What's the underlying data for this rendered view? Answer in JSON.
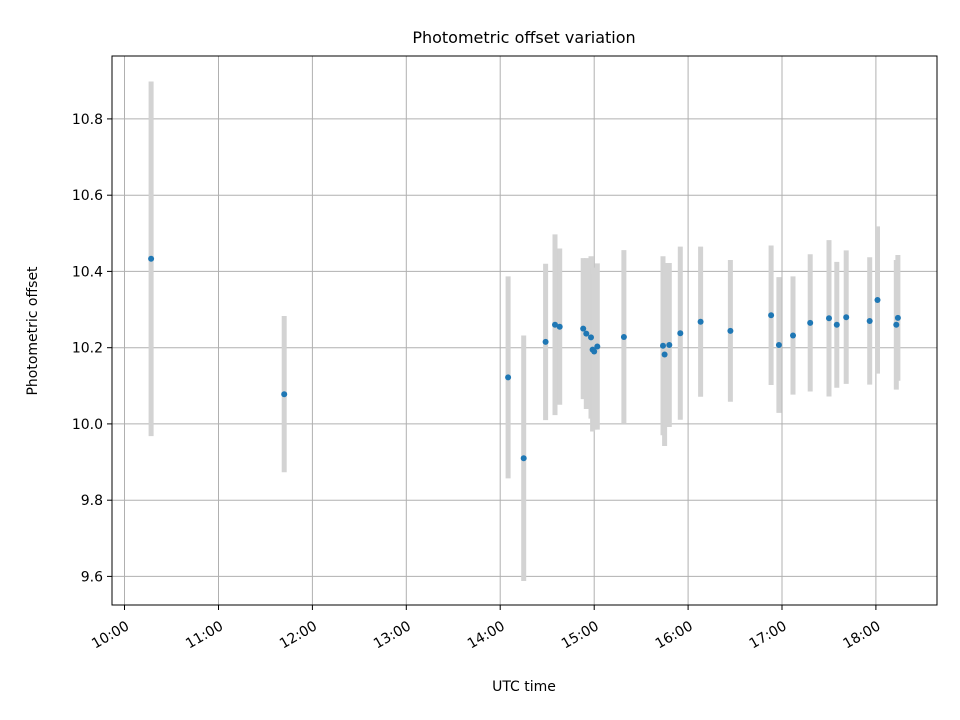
{
  "chart_data": {
    "type": "scatter",
    "title": "Photometric offset variation",
    "xlabel": "UTC time",
    "ylabel": "Photometric offset",
    "x_tick_labels": [
      "10:00",
      "11:00",
      "12:00",
      "13:00",
      "14:00",
      "15:00",
      "16:00",
      "17:00",
      "18:00"
    ],
    "y_ticks": [
      9.6,
      9.8,
      10.0,
      10.2,
      10.4,
      10.6,
      10.8
    ],
    "y_tick_labels": [
      "9.6",
      "9.8",
      "10.0",
      "10.2",
      "10.4",
      "10.6",
      "10.8"
    ],
    "xlim": [
      "09:52",
      "18:39"
    ],
    "ylim": [
      9.525,
      10.965
    ],
    "grid": true,
    "point_color": "#1f77b4",
    "errorbar_color": "#d3d3d3",
    "points": [
      {
        "t": "10:17",
        "y": 10.433,
        "err": 0.465
      },
      {
        "t": "11:42",
        "y": 10.078,
        "err": 0.205
      },
      {
        "t": "14:05",
        "y": 10.122,
        "err": 0.265
      },
      {
        "t": "14:15",
        "y": 9.91,
        "err": 0.322
      },
      {
        "t": "14:29",
        "y": 10.215,
        "err": 0.205
      },
      {
        "t": "14:35",
        "y": 10.26,
        "err": 0.237
      },
      {
        "t": "14:38",
        "y": 10.255,
        "err": 0.205
      },
      {
        "t": "14:53",
        "y": 10.25,
        "err": 0.185
      },
      {
        "t": "14:55",
        "y": 10.237,
        "err": 0.198
      },
      {
        "t": "14:58",
        "y": 10.227,
        "err": 0.213
      },
      {
        "t": "14:59",
        "y": 10.195,
        "err": 0.215
      },
      {
        "t": "15:00",
        "y": 10.19,
        "err": 0.205
      },
      {
        "t": "15:02",
        "y": 10.203,
        "err": 0.218
      },
      {
        "t": "15:19",
        "y": 10.228,
        "err": 0.228
      },
      {
        "t": "15:44",
        "y": 10.205,
        "err": 0.235
      },
      {
        "t": "15:45",
        "y": 10.182,
        "err": 0.24
      },
      {
        "t": "15:48",
        "y": 10.207,
        "err": 0.215
      },
      {
        "t": "15:55",
        "y": 10.238,
        "err": 0.227
      },
      {
        "t": "16:08",
        "y": 10.268,
        "err": 0.197
      },
      {
        "t": "16:27",
        "y": 10.244,
        "err": 0.186
      },
      {
        "t": "16:53",
        "y": 10.285,
        "err": 0.183
      },
      {
        "t": "16:58",
        "y": 10.207,
        "err": 0.178
      },
      {
        "t": "17:07",
        "y": 10.232,
        "err": 0.155
      },
      {
        "t": "17:18",
        "y": 10.265,
        "err": 0.18
      },
      {
        "t": "17:30",
        "y": 10.277,
        "err": 0.205
      },
      {
        "t": "17:35",
        "y": 10.26,
        "err": 0.165
      },
      {
        "t": "17:41",
        "y": 10.28,
        "err": 0.175
      },
      {
        "t": "17:56",
        "y": 10.27,
        "err": 0.167
      },
      {
        "t": "18:01",
        "y": 10.325,
        "err": 0.193
      },
      {
        "t": "18:13",
        "y": 10.26,
        "err": 0.17
      },
      {
        "t": "18:14",
        "y": 10.278,
        "err": 0.165
      }
    ]
  }
}
